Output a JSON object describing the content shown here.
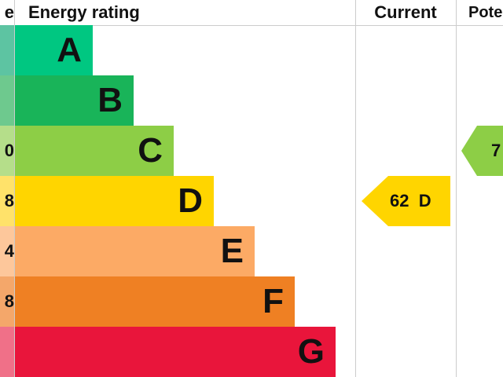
{
  "chart_data": {
    "type": "bar",
    "headers": {
      "score": "e",
      "rating": "Energy rating",
      "current": "Current",
      "potential": "Pote"
    },
    "bands": [
      {
        "letter": "A",
        "score_tail": "",
        "color": "#00c781",
        "score_color": "#5dc4a2"
      },
      {
        "letter": "B",
        "score_tail": "",
        "color": "#19b459",
        "score_color": "#6ec98e"
      },
      {
        "letter": "C",
        "score_tail": "0",
        "color": "#8dce46",
        "score_color": "#b5de8a"
      },
      {
        "letter": "D",
        "score_tail": "8",
        "color": "#ffd500",
        "score_color": "#ffe26a"
      },
      {
        "letter": "E",
        "score_tail": "4",
        "color": "#fcaa65",
        "score_color": "#fdc79b"
      },
      {
        "letter": "F",
        "score_tail": "8",
        "color": "#ef8023",
        "score_color": "#f4a76a"
      },
      {
        "letter": "G",
        "score_tail": "",
        "color": "#e9153b",
        "score_color": "#f07088"
      }
    ],
    "current": {
      "label": "62  D",
      "score": 62,
      "band": "D",
      "color": "#ffd500"
    },
    "potential": {
      "label": "7",
      "band": "C",
      "color": "#8dce46"
    }
  }
}
